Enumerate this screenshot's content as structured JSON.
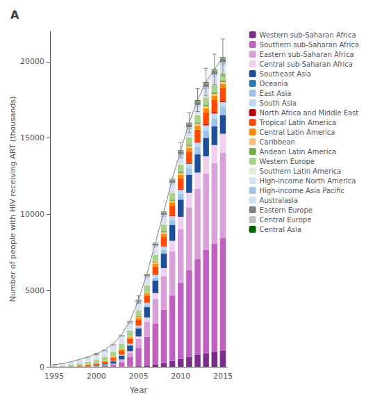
{
  "chart_data": {
    "type": "bar",
    "title": "A",
    "xlabel": "Year",
    "ylabel": "Number of people with HIV receiving ART (thousands)",
    "categories": [
      "1995",
      null,
      null,
      null,
      null,
      "2000",
      null,
      null,
      null,
      null,
      "2005",
      null,
      null,
      null,
      null,
      "2010",
      null,
      null,
      null,
      null,
      "2015"
    ],
    "stacked": true,
    "ylim": [
      0,
      22000
    ],
    "yticks": [
      0,
      5000,
      10000,
      15000,
      20000
    ],
    "grid": false,
    "legend": "right",
    "series": [
      {
        "name": "Western sub-Saharan Africa",
        "color": "#7B2D8B",
        "values": [
          0,
          0,
          0,
          0,
          0,
          0,
          2,
          5,
          10,
          20,
          40,
          80,
          150,
          250,
          380,
          520,
          650,
          780,
          880,
          960,
          1050
        ]
      },
      {
        "name": "Southern sub-Saharan Africa",
        "color": "#C060C0",
        "values": [
          0,
          1,
          3,
          5,
          10,
          20,
          50,
          120,
          280,
          620,
          1200,
          1900,
          2700,
          3500,
          4300,
          5000,
          5700,
          6300,
          6800,
          7100,
          7400
        ]
      },
      {
        "name": "Eastern sub-Saharan Africa",
        "color": "#D8A0D8",
        "values": [
          0,
          0,
          1,
          2,
          5,
          10,
          25,
          60,
          150,
          300,
          600,
          1000,
          1600,
          2200,
          2900,
          3500,
          4100,
          4600,
          5000,
          5300,
          5600
        ]
      },
      {
        "name": "Central sub-Saharan Africa",
        "color": "#F0D0F0",
        "values": [
          0,
          0,
          0,
          1,
          2,
          5,
          10,
          20,
          40,
          80,
          150,
          250,
          380,
          520,
          680,
          820,
          950,
          1050,
          1120,
          1180,
          1230
        ]
      },
      {
        "name": "Southeast Asia",
        "color": "#1F4E99",
        "values": [
          0,
          2,
          5,
          10,
          20,
          40,
          80,
          150,
          250,
          380,
          520,
          680,
          820,
          950,
          1050,
          1120,
          1180,
          1200,
          1210,
          1220,
          1220
        ]
      },
      {
        "name": "Oceania",
        "color": "#2E75B6",
        "values": [
          0,
          0,
          0,
          0,
          0,
          0,
          1,
          1,
          2,
          3,
          4,
          5,
          6,
          7,
          8,
          9,
          10,
          10,
          10,
          10,
          10
        ]
      },
      {
        "name": "East Asia",
        "color": "#9DC3E6",
        "values": [
          0,
          0,
          0,
          0,
          1,
          2,
          5,
          10,
          20,
          40,
          80,
          130,
          190,
          250,
          310,
          370,
          420,
          460,
          490,
          510,
          520
        ]
      },
      {
        "name": "South Asia",
        "color": "#BDD7EE",
        "values": [
          0,
          0,
          0,
          1,
          2,
          5,
          10,
          20,
          40,
          70,
          100,
          140,
          180,
          220,
          250,
          280,
          300,
          310,
          320,
          325,
          330
        ]
      },
      {
        "name": "North Africa and Middle East",
        "color": "#C00000",
        "values": [
          0,
          0,
          0,
          0,
          0,
          0,
          1,
          2,
          4,
          7,
          12,
          18,
          25,
          33,
          42,
          52,
          62,
          72,
          80,
          87,
          93
        ]
      },
      {
        "name": "Tropical Latin America",
        "color": "#FF4B00",
        "values": [
          5,
          10,
          20,
          40,
          70,
          100,
          140,
          190,
          250,
          310,
          380,
          450,
          520,
          580,
          640,
          690,
          730,
          760,
          780,
          800,
          815
        ]
      },
      {
        "name": "Central Latin America",
        "color": "#FF8C00",
        "values": [
          2,
          5,
          10,
          18,
          28,
          40,
          55,
          72,
          92,
          115,
          140,
          165,
          190,
          210,
          228,
          243,
          255,
          264,
          270,
          275,
          278
        ]
      },
      {
        "name": "Caribbean",
        "color": "#FFBF80",
        "values": [
          1,
          2,
          4,
          7,
          11,
          16,
          22,
          29,
          37,
          46,
          57,
          68,
          79,
          89,
          98,
          106,
          113,
          118,
          122,
          125,
          127
        ]
      },
      {
        "name": "Andean Latin America",
        "color": "#70AD47",
        "values": [
          1,
          2,
          4,
          6,
          9,
          13,
          18,
          23,
          30,
          37,
          45,
          54,
          62,
          71,
          79,
          86,
          92,
          97,
          100,
          103,
          105
        ]
      },
      {
        "name": "Western Europe",
        "color": "#A9D18E",
        "values": [
          30,
          50,
          80,
          120,
          160,
          200,
          240,
          280,
          320,
          355,
          385,
          410,
          430,
          445,
          455,
          463,
          468,
          472,
          475,
          477,
          479
        ]
      },
      {
        "name": "Southern Latin America",
        "color": "#E2EFDA",
        "values": [
          1,
          2,
          3,
          5,
          8,
          11,
          15,
          19,
          24,
          29,
          34,
          39,
          44,
          49,
          53,
          57,
          60,
          62,
          64,
          65,
          66
        ]
      },
      {
        "name": "High-income North America",
        "color": "#D9E1F2",
        "values": [
          80,
          120,
          170,
          220,
          265,
          305,
          340,
          370,
          395,
          415,
          432,
          446,
          457,
          466,
          473,
          478,
          483,
          487,
          490,
          492,
          494
        ]
      },
      {
        "name": "High-income Asia Pacific",
        "color": "#9FC5E8",
        "values": [
          5,
          8,
          12,
          17,
          22,
          28,
          34,
          40,
          47,
          54,
          61,
          67,
          73,
          78,
          83,
          87,
          90,
          93,
          95,
          97,
          98
        ]
      },
      {
        "name": "Australasia",
        "color": "#CFE2F3",
        "values": [
          3,
          5,
          7,
          10,
          13,
          16,
          19,
          22,
          25,
          28,
          30,
          33,
          35,
          37,
          38,
          40,
          41,
          42,
          43,
          43,
          44
        ]
      },
      {
        "name": "Eastern Europe",
        "color": "#808080",
        "values": [
          1,
          2,
          4,
          7,
          12,
          18,
          27,
          38,
          52,
          70,
          90,
          112,
          135,
          158,
          178,
          195,
          208,
          218,
          225,
          230,
          234
        ]
      },
      {
        "name": "Central Europe",
        "color": "#BFBFBF",
        "values": [
          2,
          4,
          6,
          9,
          12,
          15,
          19,
          23,
          27,
          31,
          35,
          39,
          43,
          46,
          49,
          52,
          54,
          56,
          57,
          58,
          59
        ]
      },
      {
        "name": "Central Asia",
        "color": "#006400",
        "values": [
          0,
          0,
          0,
          0,
          1,
          1,
          2,
          3,
          5,
          7,
          10,
          13,
          17,
          21,
          25,
          29,
          33,
          37,
          40,
          43,
          45
        ]
      }
    ],
    "totals": {
      "color": "gray",
      "values": [
        131,
        213,
        329,
        478,
        651,
        845,
        1115,
        1497,
        2100,
        3017,
        4405,
        6099,
        8136,
        10180,
        12319,
        14197,
        15999,
        17488,
        18671,
        19500,
        20297
      ],
      "error_bars": [
        8,
        null,
        null,
        null,
        null,
        40,
        null,
        null,
        null,
        null,
        250,
        null,
        null,
        null,
        null,
        500,
        650,
        750,
        900,
        1000,
        1200
      ]
    }
  }
}
